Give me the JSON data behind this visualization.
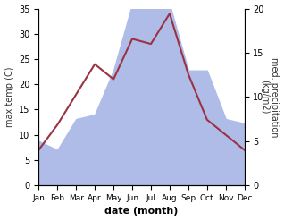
{
  "months": [
    "Jan",
    "Feb",
    "Mar",
    "Apr",
    "May",
    "Jun",
    "Jul",
    "Aug",
    "Sep",
    "Oct",
    "Nov",
    "Dec"
  ],
  "temperature": [
    7.0,
    12.0,
    18.0,
    24.0,
    21.0,
    29.0,
    28.0,
    34.0,
    22.0,
    13.0,
    10.0,
    7.0
  ],
  "precipitation": [
    5.0,
    4.0,
    7.5,
    8.0,
    13.0,
    20.5,
    20.5,
    20.5,
    13.0,
    13.0,
    7.5,
    7.0
  ],
  "temp_color": "#993344",
  "precip_color": "#b0bce8",
  "temp_ylim": [
    0,
    35
  ],
  "precip_ylim": [
    0,
    20
  ],
  "ylabel_left": "max temp (C)",
  "ylabel_right": "med. precipitation\n(kg/m2)",
  "xlabel": "date (month)",
  "bg_color": "#ffffff",
  "fig_width": 3.18,
  "fig_height": 2.47,
  "dpi": 100
}
